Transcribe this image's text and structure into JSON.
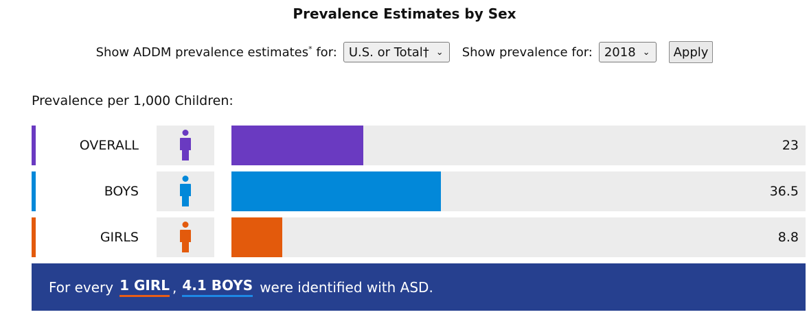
{
  "title": "Prevalence Estimates by Sex",
  "controls": {
    "region_label": "Show ADDM prevalence estimates",
    "region_label_sup": "*",
    "region_label_suffix": "for:",
    "region_value": "U.S. or Total†",
    "year_label": "Show prevalence for:",
    "year_value": "2018",
    "apply_label": "Apply"
  },
  "chart_data": {
    "type": "bar",
    "orientation": "horizontal",
    "title": "Prevalence Estimates by Sex",
    "ylabel": "Prevalence per 1,000 Children:",
    "categories": [
      "OVERALL",
      "BOYS",
      "GIRLS"
    ],
    "values": [
      23,
      36.5,
      8.8
    ],
    "value_labels": [
      "23",
      "36.5",
      "8.8"
    ],
    "xlim": [
      0,
      100
    ],
    "colors": [
      "#6a3ac1",
      "#0288d9",
      "#e35a0c"
    ],
    "track_color": "#ececec",
    "grid": false
  },
  "summary": {
    "prefix": "For every",
    "girl": "1 GIRL",
    "comma": ",",
    "boys": "4.1 BOYS",
    "suffix": "were identified with ASD.",
    "background": "#26408f",
    "girl_underline": "#e85d17",
    "boys_underline": "#1e88e5"
  },
  "icons": [
    "person-icon",
    "person-icon",
    "person-icon"
  ]
}
